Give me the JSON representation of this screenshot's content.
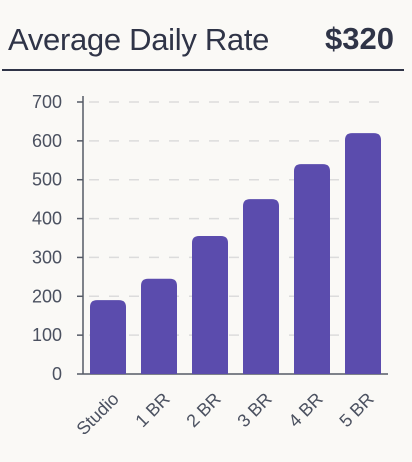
{
  "header": {
    "title": "Average Daily Rate",
    "value": "$320"
  },
  "chart_data": {
    "type": "bar",
    "categories": [
      "Studio",
      "1 BR",
      "2 BR",
      "3 BR",
      "4 BR",
      "5 BR"
    ],
    "values": [
      190,
      245,
      355,
      450,
      540,
      620
    ],
    "title": "",
    "xlabel": "",
    "ylabel": "",
    "ylim": [
      0,
      700
    ],
    "yticks": [
      0,
      100,
      200,
      300,
      400,
      500,
      600,
      700
    ],
    "grid": true,
    "bar_color": "#5b4cad",
    "grid_color": "#dcdcdc",
    "axis_color": "#555a66"
  }
}
